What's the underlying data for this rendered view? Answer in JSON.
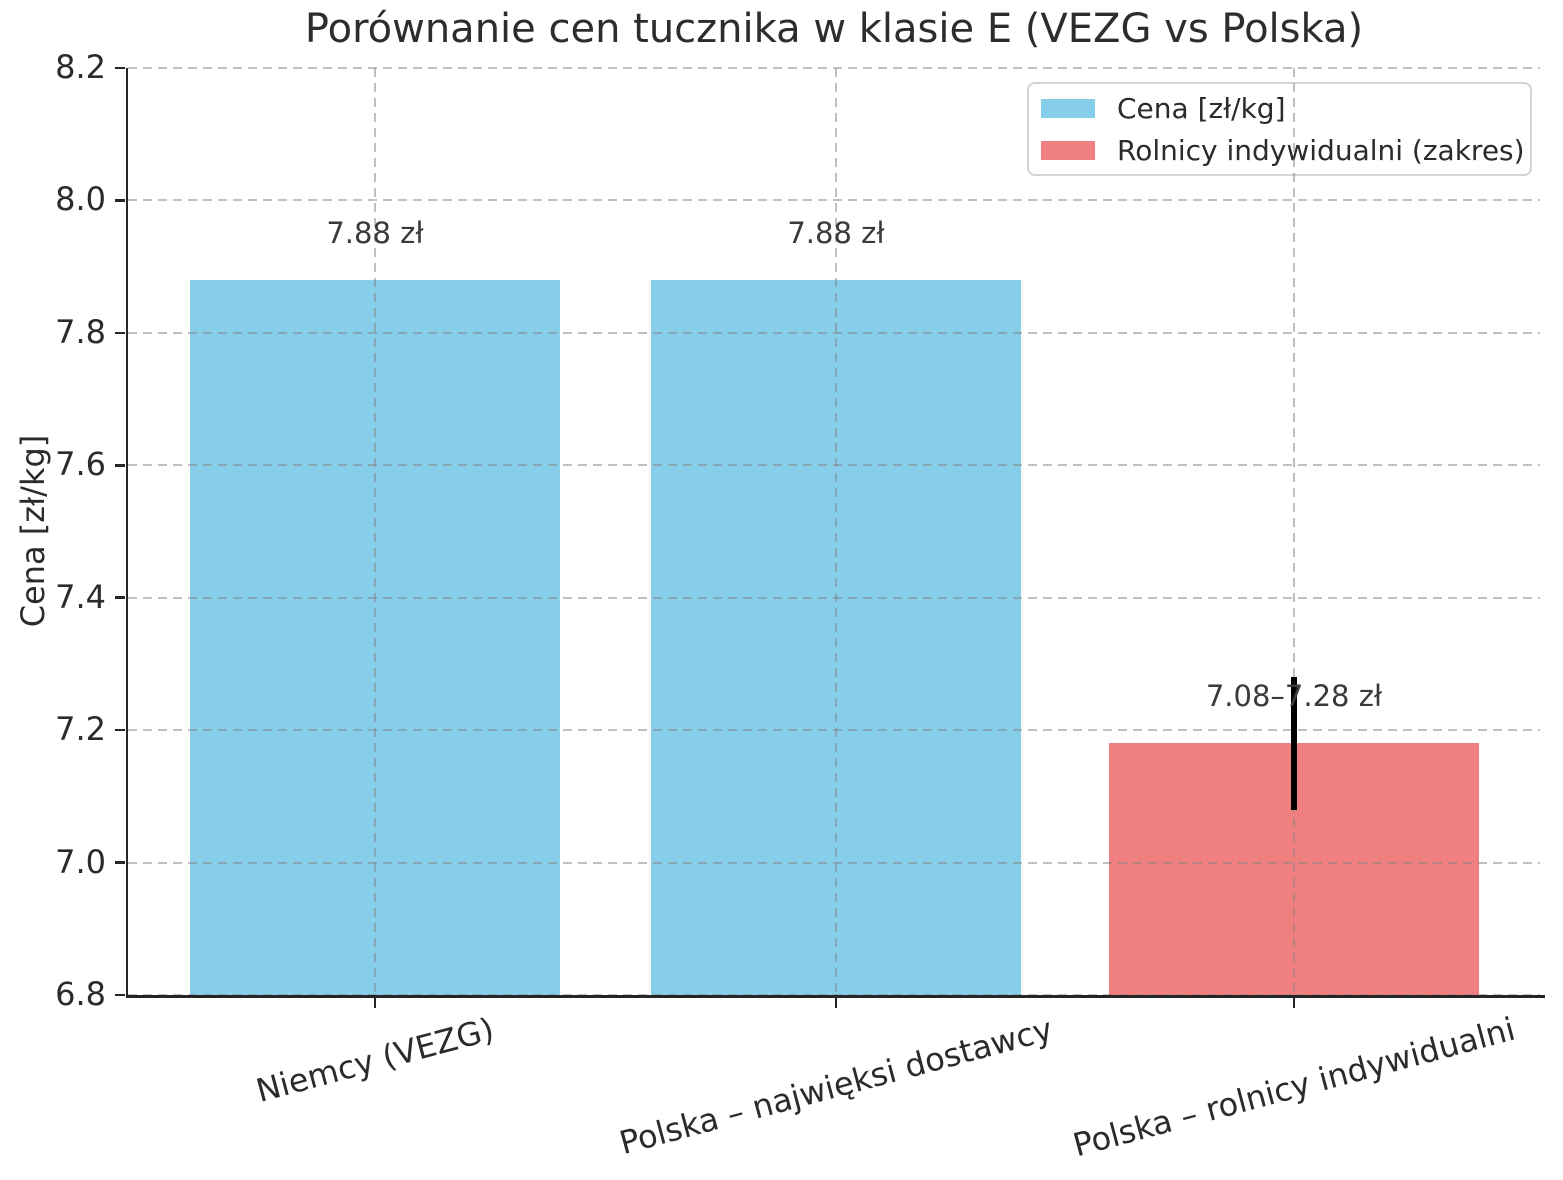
{
  "chart_data": {
    "type": "bar",
    "title": "Porównanie cen tucznika w klasie E (VEZG vs Polska)",
    "ylabel": "Cena [zł/kg]",
    "xlabel": "",
    "ylim": [
      6.8,
      8.2
    ],
    "yticks": [
      6.8,
      7.0,
      7.2,
      7.4,
      7.6,
      7.8,
      8.0,
      8.2
    ],
    "categories": [
      "Niemcy (VEZG)",
      "Polska – najwięksi dostawcy",
      "Polska – rolnicy indywidualni"
    ],
    "values": [
      7.88,
      7.88,
      7.18
    ],
    "bar_colors": [
      "#87CEEB",
      "#87CEEB",
      "#F08080"
    ],
    "value_labels": [
      "7.88 zł",
      "7.88 zł",
      "7.08–7.28 zł"
    ],
    "error_bars": [
      {
        "index": 2,
        "low": 7.08,
        "high": 7.28,
        "color": "#000000"
      }
    ],
    "grid": {
      "on": true,
      "style": "dashed",
      "axis": "both",
      "above_bars": true
    },
    "legend": {
      "position": "upper right",
      "entries": [
        {
          "label": "Cena [zł/kg]",
          "color": "#87CEEB"
        },
        {
          "label": "Rolnicy indywidualni (zakres)",
          "color": "#F08080"
        }
      ]
    },
    "axis_color": "#262626",
    "grid_color": "#c8c8c8"
  }
}
